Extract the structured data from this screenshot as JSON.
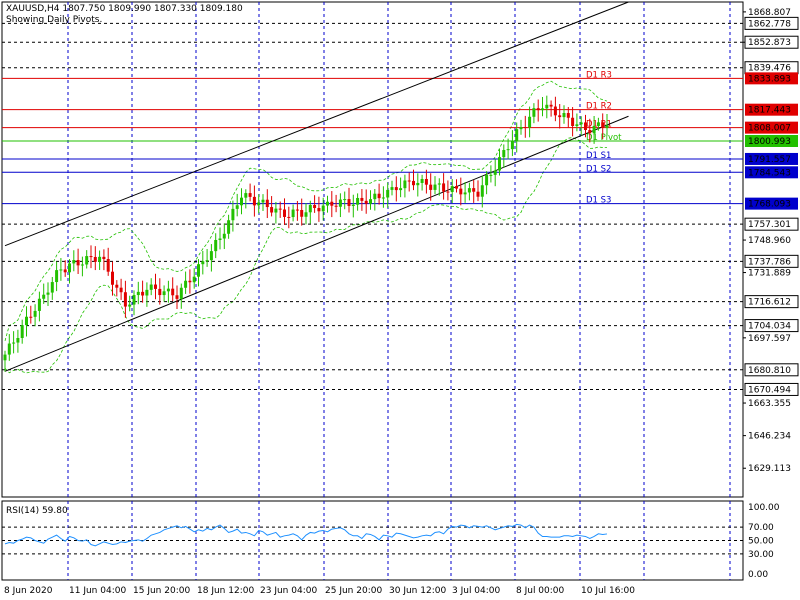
{
  "header": {
    "symbol_line": "XAUUSD,H4  1807.750 1809.990 1807.330 1809.180",
    "subtitle": "Showing Daily Pivots."
  },
  "rsi_panel": {
    "label": "RSI(14) 59.80",
    "levels": [
      100.0,
      70.0,
      50.0,
      30.0,
      0.0
    ],
    "tick_labels": [
      "100.00",
      "70.00",
      "50.00",
      "30.00",
      "0.00"
    ]
  },
  "colors": {
    "bull": "#22c000",
    "bear": "#e00000",
    "resistance": "#e00000",
    "support": "#0000cc",
    "pivot": "#22c000",
    "rsi_line": "#1e90ff",
    "bands": "#22c000",
    "grid": "#0000cc"
  },
  "chart_data": {
    "type": "candlestick",
    "symbol": "XAUUSD",
    "timeframe": "H4",
    "ylim": [
      1614,
      1874
    ],
    "x_tick_labels": [
      "8 Jun 2020",
      "11 Jun 04:00",
      "15 Jun 20:00",
      "18 Jun 12:00",
      "23 Jun 04:00",
      "25 Jun 20:00",
      "30 Jun 12:00",
      "3 Jul 04:00",
      "8 Jul 00:00",
      "10 Jul 16:00"
    ],
    "y_tick_labels": [
      {
        "value": 1868.807,
        "text": "1868.807"
      },
      {
        "value": 1852.873,
        "text": "1852.873"
      },
      {
        "value": 1748.96,
        "text": "1748.960"
      },
      {
        "value": 1731.889,
        "text": "1731.889"
      },
      {
        "value": 1697.597,
        "text": "1697.597"
      },
      {
        "value": 1663.355,
        "text": "1663.355"
      },
      {
        "value": 1646.234,
        "text": "1646.234"
      },
      {
        "value": 1629.113,
        "text": "1629.113"
      }
    ],
    "dashed_levels": [
      {
        "value": 1862.778,
        "text": "1862.778"
      },
      {
        "value": 1852.873,
        "text": "1852.873"
      },
      {
        "value": 1839.476,
        "text": "1839.476"
      },
      {
        "value": 1757.301,
        "text": "1757.301"
      },
      {
        "value": 1737.786,
        "text": "1737.786"
      },
      {
        "value": 1716.612,
        "text": "1716.612"
      },
      {
        "value": 1704.034,
        "text": "1704.034"
      },
      {
        "value": 1680.81,
        "text": "1680.810"
      },
      {
        "value": 1670.494,
        "text": "1670.494"
      }
    ],
    "pivots": [
      {
        "name": "D1 R3",
        "value": 1833.893,
        "text": "1833.893",
        "kind": "resistance"
      },
      {
        "name": "D1 R2",
        "value": 1817.443,
        "text": "1817.443",
        "kind": "resistance"
      },
      {
        "name": "D1 R1",
        "value": 1808.007,
        "text": "1808.007",
        "kind": "resistance"
      },
      {
        "name": "D1 Pivot",
        "value": 1800.993,
        "text": "1800.993",
        "kind": "pivot"
      },
      {
        "name": "D1 S1",
        "value": 1791.557,
        "text": "1791.557",
        "kind": "support"
      },
      {
        "name": "D1 S2",
        "value": 1784.543,
        "text": "1784.543",
        "kind": "support"
      },
      {
        "name": "D1 S3",
        "value": 1768.093,
        "text": "1768.093",
        "kind": "support"
      }
    ],
    "current_price": 1809.18,
    "channel": {
      "upper": [
        [
          0,
          1746
        ],
        [
          145,
          1874
        ]
      ],
      "lower": [
        [
          0,
          1680
        ],
        [
          145,
          1814
        ]
      ]
    },
    "rsi_series": [
      45,
      47,
      46,
      50,
      52,
      55,
      54,
      50,
      48,
      46,
      52,
      55,
      58,
      53,
      49,
      56,
      54,
      50,
      49,
      51,
      44,
      42,
      45,
      48,
      46,
      44,
      45,
      48,
      47,
      49,
      50,
      51,
      49,
      53,
      58,
      60,
      62,
      66,
      68,
      70,
      72,
      69,
      71,
      67,
      63,
      66,
      64,
      68,
      66,
      70,
      73,
      68,
      62,
      64,
      67,
      61,
      62,
      60,
      57,
      65,
      63,
      58,
      60,
      62,
      55,
      57,
      58,
      60,
      57,
      51,
      58,
      62,
      61,
      64,
      65,
      63,
      67,
      68,
      69,
      66,
      60,
      57,
      57,
      53,
      60,
      59,
      56,
      51,
      58,
      57,
      55,
      61,
      60,
      58,
      56,
      54,
      55,
      57,
      58,
      57,
      62,
      63,
      60,
      67,
      71,
      70,
      73,
      72,
      69,
      72,
      71,
      70,
      72,
      69,
      66,
      68,
      70,
      72,
      71,
      74,
      73,
      69,
      73,
      70,
      61,
      56,
      56,
      55,
      55,
      55,
      57,
      57,
      56,
      58,
      57,
      56,
      53,
      56,
      60,
      59,
      59.8
    ]
  }
}
